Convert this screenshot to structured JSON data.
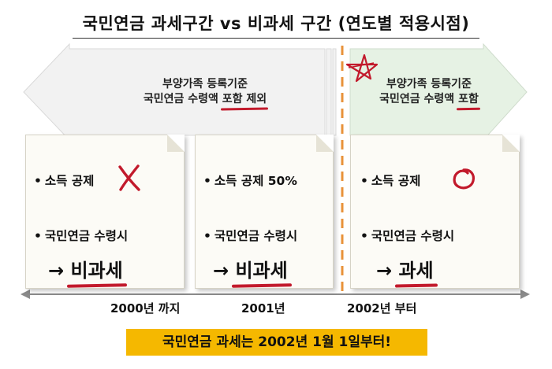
{
  "title": "국민연금 과세구간 vs 비과세 구간 (연도별 적용시점)",
  "colors": {
    "accent_red": "#c21a2c",
    "divider_orange": "#e8923a",
    "footer_yellow": "#f5b800",
    "arrow_gray": "#f2f2f2",
    "arrow_green": "#e6f2e4"
  },
  "banners": {
    "left": {
      "line1": "부양가족 등록기준",
      "line2_prefix": "국민연금 수령액 ",
      "line2_highlight": "포함 제외"
    },
    "right": {
      "line1": "부양가족 등록기준",
      "line2_prefix": "국민연금 수령액 ",
      "line2_highlight": "포함"
    }
  },
  "panels": [
    {
      "deduction": "소득 공제",
      "deduction_mark": "x-mark",
      "pension": "국민연금 수령시",
      "arrow": "→",
      "result": "비과세",
      "period": "2000년 까지"
    },
    {
      "deduction": "소득 공제 50%",
      "pension": "국민연금 수령시",
      "arrow": "→",
      "result": "비과세",
      "period": "2001년"
    },
    {
      "deduction": "소득 공제",
      "deduction_mark": "circle-mark",
      "pension": "국민연금 수령시",
      "arrow": "→",
      "result": "과세",
      "period": "2002년 부터"
    }
  ],
  "bullet": "•",
  "footer": "국민연금 과세는 2002년 1월 1일부터!"
}
